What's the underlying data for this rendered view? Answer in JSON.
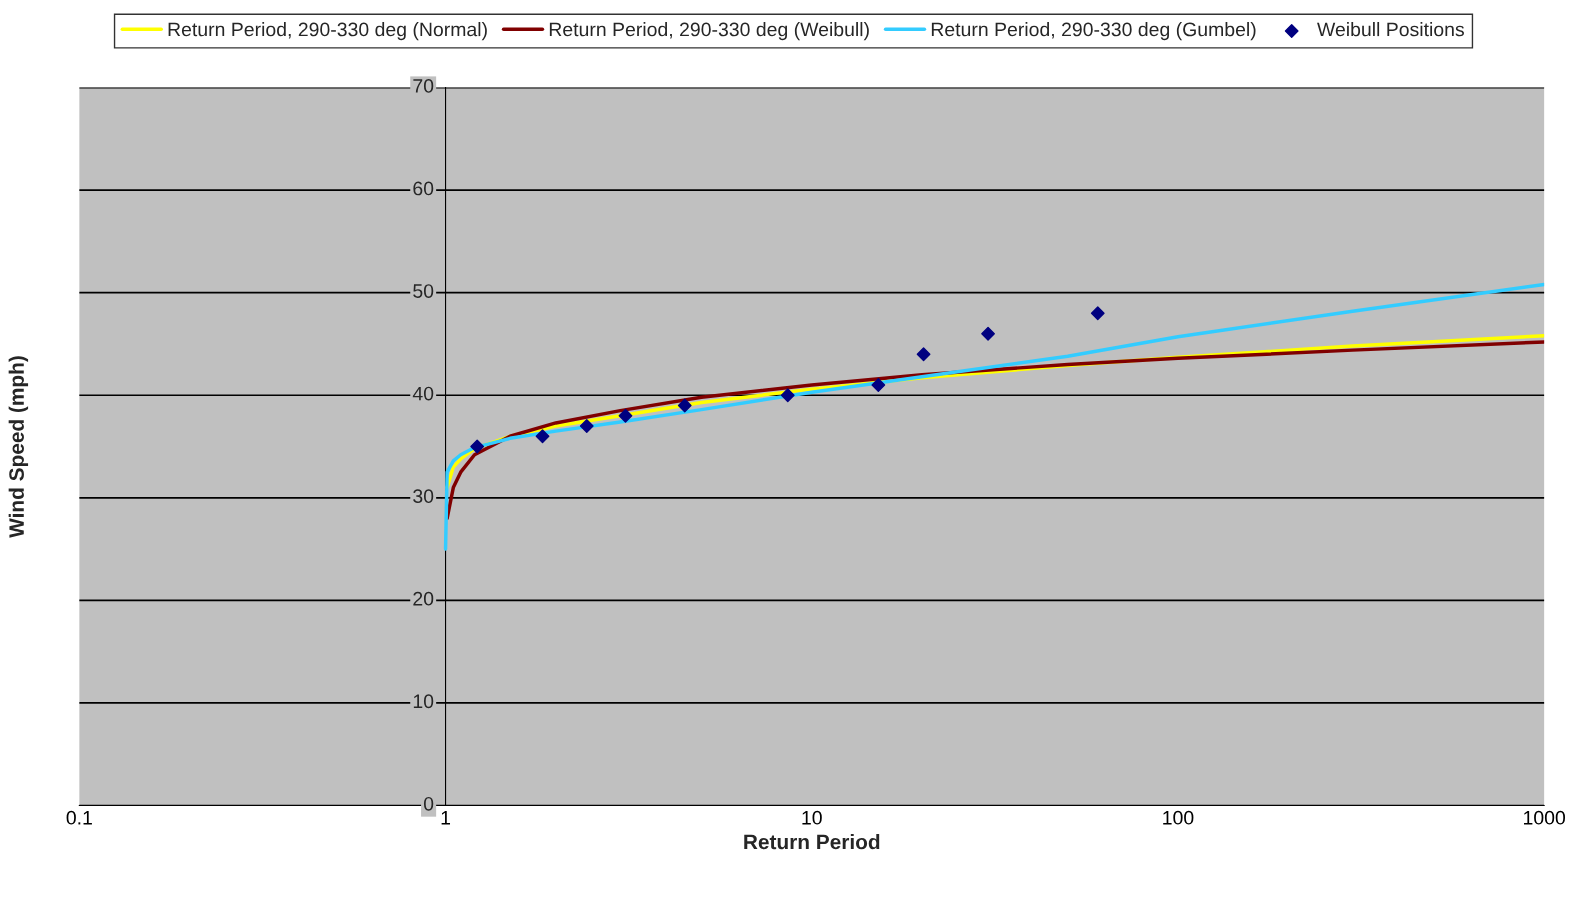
{
  "chart_data": {
    "type": "line",
    "xlabel": "Return Period",
    "ylabel": "Wind Speed (mph)",
    "log": "x",
    "xlim": [
      0.1,
      1000
    ],
    "xticks": [
      0.1,
      1,
      10,
      100,
      1000
    ],
    "ylim": [
      0,
      70
    ],
    "yticks": [
      0,
      10,
      20,
      30,
      40,
      50,
      60,
      70
    ],
    "grid": "y",
    "legend": "top",
    "series": [
      {
        "name": "Return Period, 290-330 deg (Normal)",
        "color": "#ffff00",
        "marker": "none",
        "x": [
          1.01,
          1.05,
          1.1,
          1.2,
          1.5,
          2,
          3,
          5,
          10,
          20,
          50,
          100,
          300,
          1000
        ],
        "values": [
          31,
          33,
          33.8,
          34.8,
          36,
          37,
          38,
          39.3,
          40.6,
          41.7,
          42.9,
          43.7,
          44.8,
          45.8
        ]
      },
      {
        "name": "Return Period, 290-330 deg (Weibull)",
        "color": "#800000",
        "marker": "none",
        "x": [
          1.01,
          1.05,
          1.1,
          1.2,
          1.5,
          2,
          3,
          5,
          10,
          20,
          50,
          100,
          300,
          1000
        ],
        "values": [
          28,
          31,
          32.5,
          34.2,
          36,
          37.3,
          38.5,
          39.8,
          41,
          42,
          43,
          43.6,
          44.4,
          45.2
        ]
      },
      {
        "name": "Return Period, 290-330 deg (Gumbel)",
        "color": "#33ccff",
        "marker": "none",
        "x": [
          1.0,
          1.01,
          1.05,
          1.1,
          1.2,
          1.5,
          2,
          3,
          5,
          10,
          20,
          50,
          100,
          300,
          1000
        ],
        "values": [
          25,
          32.5,
          33.6,
          34.2,
          34.9,
          35.8,
          36.5,
          37.4,
          38.6,
          40.3,
          41.8,
          43.8,
          45.7,
          48.2,
          50.8
        ]
      },
      {
        "name": "Weibull Positions",
        "type": "scatter",
        "color": "#000080",
        "marker": "diamond",
        "x": [
          1.22,
          1.84,
          2.43,
          3.1,
          4.5,
          8.6,
          15.2,
          20.2,
          30.3,
          60.4
        ],
        "values": [
          35,
          36,
          37,
          38,
          39,
          40,
          41,
          44,
          46,
          48
        ]
      }
    ]
  }
}
